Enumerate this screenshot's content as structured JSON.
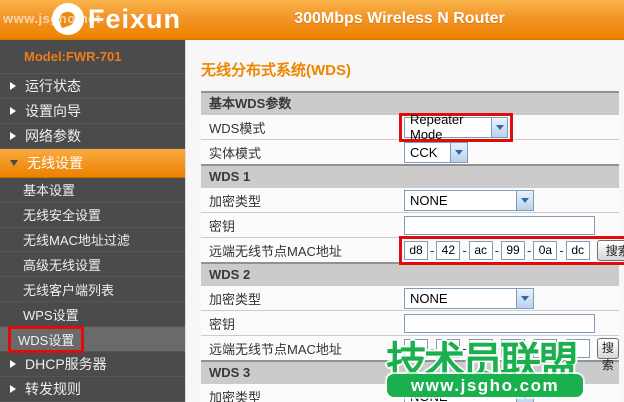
{
  "watermark_top": "www.jsgho.net",
  "header": {
    "brand": "Feixun",
    "title": "300Mbps Wireless N Router"
  },
  "sidebar": {
    "model": "Model:FWR-701",
    "items": [
      {
        "label": "运行状态"
      },
      {
        "label": "设置向导"
      },
      {
        "label": "网络参数"
      },
      {
        "label": "无线设置"
      },
      {
        "label": "基本设置"
      },
      {
        "label": "无线安全设置"
      },
      {
        "label": "无线MAC地址过滤"
      },
      {
        "label": "高级无线设置"
      },
      {
        "label": "无线客户端列表"
      },
      {
        "label": "WPS设置"
      },
      {
        "label": "WDS设置"
      },
      {
        "label": "DHCP服务器"
      },
      {
        "label": "转发规则"
      }
    ]
  },
  "main": {
    "title": "无线分布式系统(WDS)",
    "section_basic": "基本WDS参数",
    "wds_mode_label": "WDS模式",
    "wds_mode_value": "Repeater Mode",
    "phy_mode_label": "实体模式",
    "phy_mode_value": "CCK",
    "encryption_label": "加密类型",
    "key_label": "密钥",
    "mac_label": "远端无线节点MAC地址",
    "search_label": "搜索",
    "mac_sep": "-",
    "wds1": {
      "header": "WDS 1",
      "encryption": "NONE",
      "key": "",
      "mac": [
        "d8",
        "42",
        "ac",
        "99",
        "0a",
        "dc"
      ]
    },
    "wds2": {
      "header": "WDS 2",
      "encryption": "NONE",
      "key": "",
      "mac": [
        "",
        "",
        "",
        "",
        "",
        ""
      ]
    },
    "wds3": {
      "header": "WDS 3",
      "encryption": "NONE"
    }
  },
  "watermark_brand": {
    "line1": "技术员联盟",
    "line2": "www.jsgho.com"
  },
  "colors": {
    "accent_orange": "#ee8500",
    "annotation_red": "#e10b0b",
    "watermark_green": "#1bb04e",
    "select_border": "#7f9db9"
  }
}
